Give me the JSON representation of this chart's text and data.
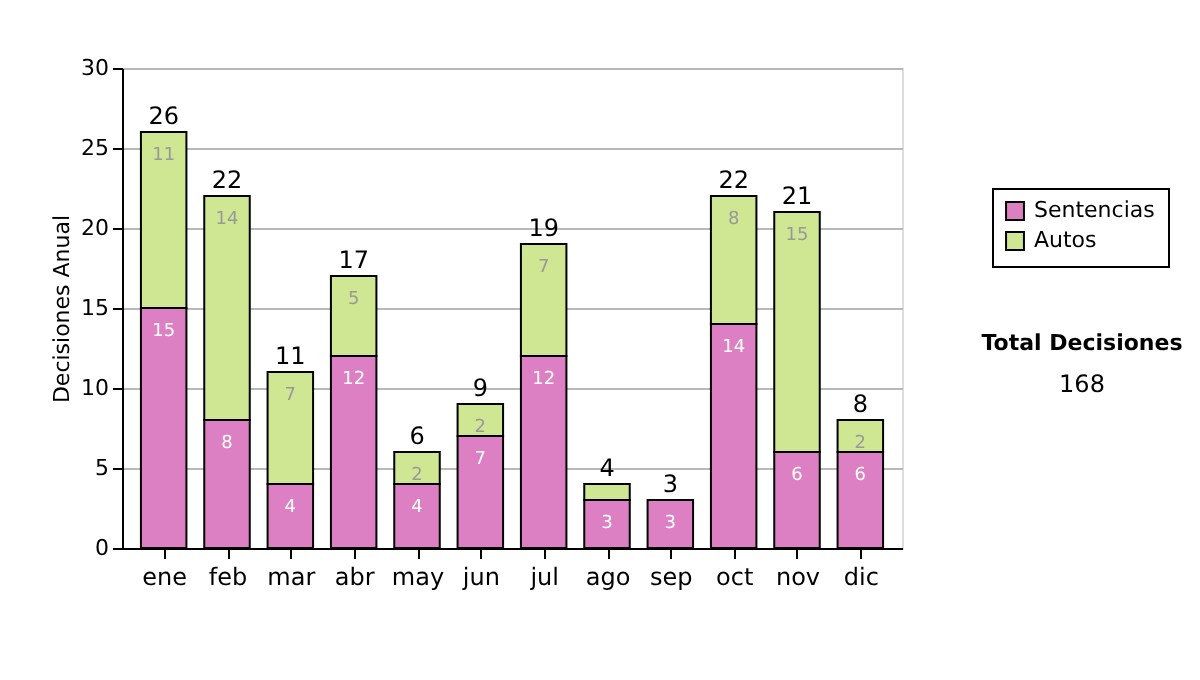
{
  "chart_data": {
    "type": "bar",
    "stacked": true,
    "ylabel": "Decisiones Anual",
    "categories": [
      "ene",
      "feb",
      "mar",
      "abr",
      "may",
      "jun",
      "jul",
      "ago",
      "sep",
      "oct",
      "nov",
      "dic"
    ],
    "series": [
      {
        "name": "Sentencias",
        "color": "#dd7fc3",
        "values": [
          15,
          8,
          4,
          12,
          4,
          7,
          12,
          3,
          3,
          14,
          6,
          6
        ],
        "value_labels": [
          "15",
          "8",
          "4",
          "12",
          "4",
          "7",
          "12",
          "3",
          "3",
          "14",
          "6",
          "6"
        ]
      },
      {
        "name": "Autos",
        "color": "#cfe693",
        "values": [
          11,
          14,
          7,
          5,
          2,
          2,
          7,
          1,
          0,
          8,
          15,
          2
        ],
        "value_labels": [
          "11",
          "14",
          "7",
          "5",
          "2",
          "2",
          "7",
          null,
          null,
          "8",
          "15",
          "2"
        ]
      }
    ],
    "totals": [
      "26",
      "22",
      "11",
      "17",
      "6",
      "9",
      "19",
      "4",
      "3",
      "22",
      "21",
      "8"
    ],
    "ylim": [
      0,
      30
    ],
    "yticks": [
      0,
      5,
      10,
      15,
      20,
      25,
      30
    ],
    "grid": "y",
    "legend": "right",
    "annotations": [
      "Total Decisiones",
      "168"
    ]
  }
}
